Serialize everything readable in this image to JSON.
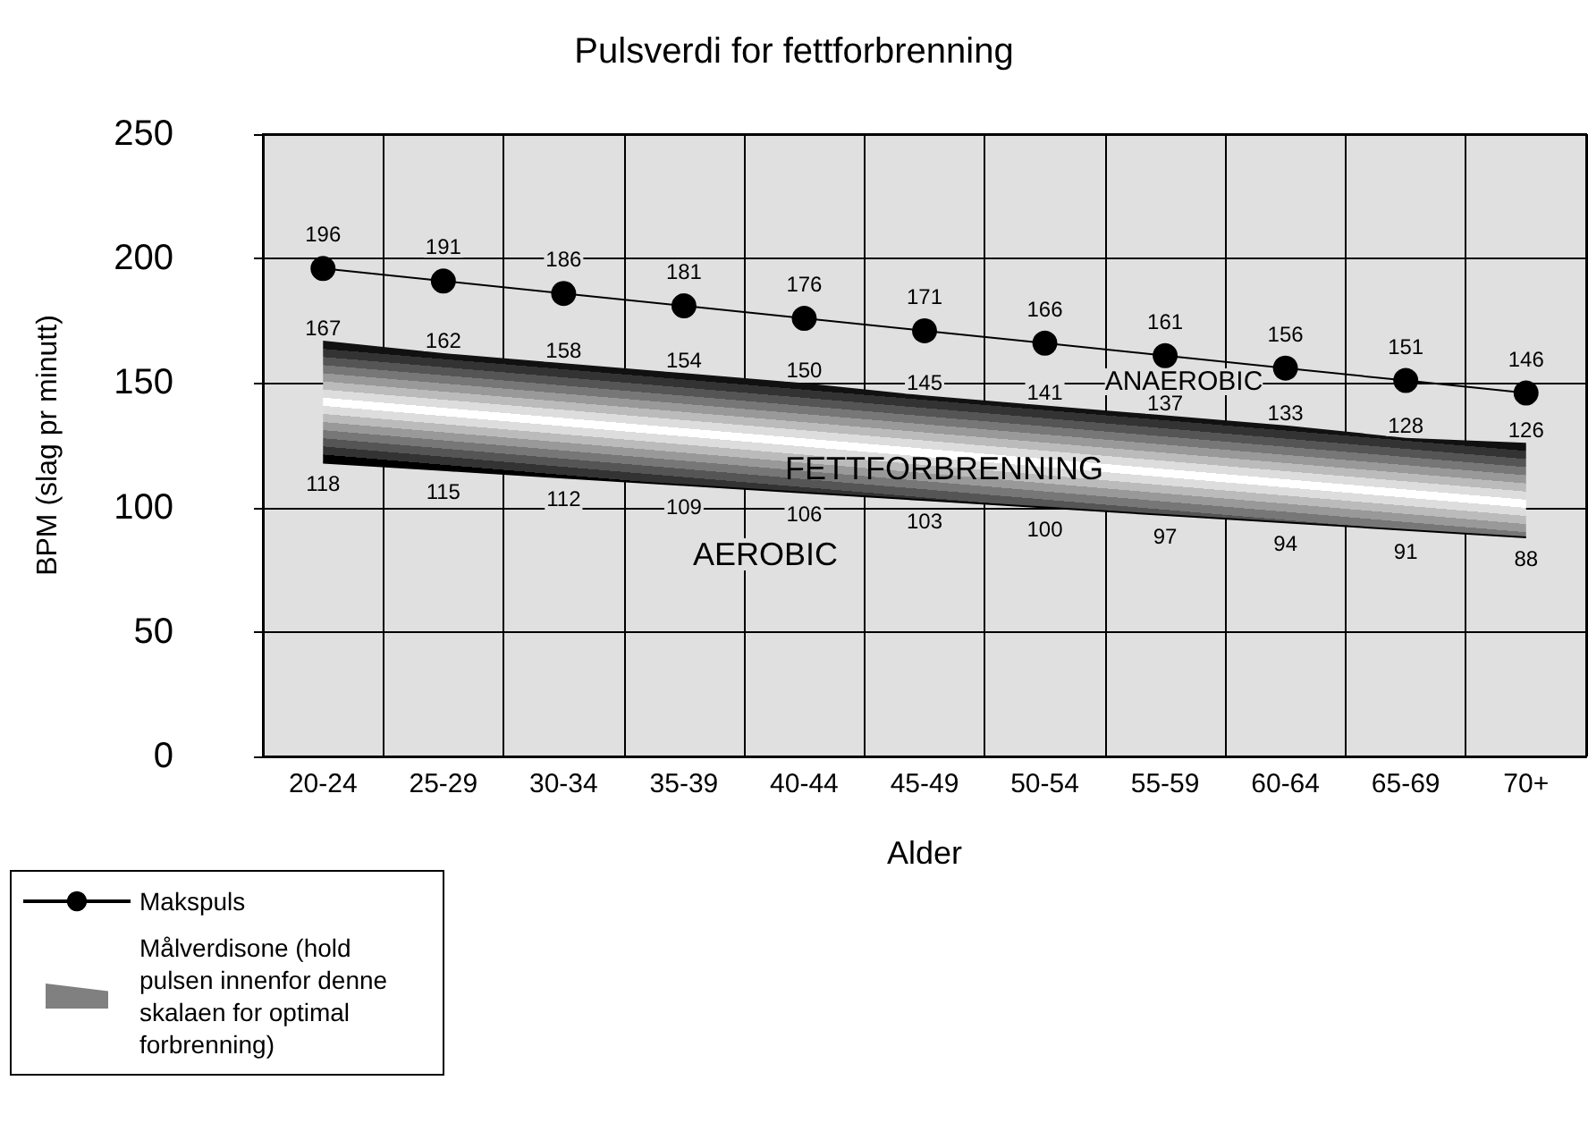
{
  "chart_data": {
    "type": "line",
    "title": "Pulsverdi for fettforbrenning",
    "xlabel": "Alder",
    "ylabel": "BPM (slag pr minutt)",
    "categories": [
      "20-24",
      "25-29",
      "30-34",
      "35-39",
      "40-44",
      "45-49",
      "50-54",
      "55-59",
      "60-64",
      "65-69",
      "70+"
    ],
    "series": [
      {
        "name": "Makspuls",
        "color": "#000000",
        "values": [
          196,
          191,
          186,
          181,
          176,
          171,
          166,
          161,
          156,
          151,
          146
        ]
      },
      {
        "name": "Målverdisone (hold pulsen innenfor denne skalaen for optimal forbrenning)",
        "type": "area",
        "color": "#808080",
        "marker": "none",
        "values": [
          167,
          162,
          158,
          154,
          150,
          145,
          141,
          137,
          133,
          128,
          126
        ]
      },
      {
        "type": "line",
        "color": "#000000",
        "marker": "none",
        "values": [
          118,
          115,
          112,
          109,
          106,
          103,
          100,
          97,
          94,
          91,
          88
        ]
      }
    ],
    "ylim": [
      0,
      250
    ],
    "yticks": [
      0,
      50,
      100,
      150,
      200,
      250
    ],
    "grid": true,
    "legend": "bottom left",
    "marker": "circle",
    "data_labels": true,
    "annotations": [
      "ANAEROBIC",
      "FETTFORBRENNING",
      "AEROBIC"
    ]
  }
}
